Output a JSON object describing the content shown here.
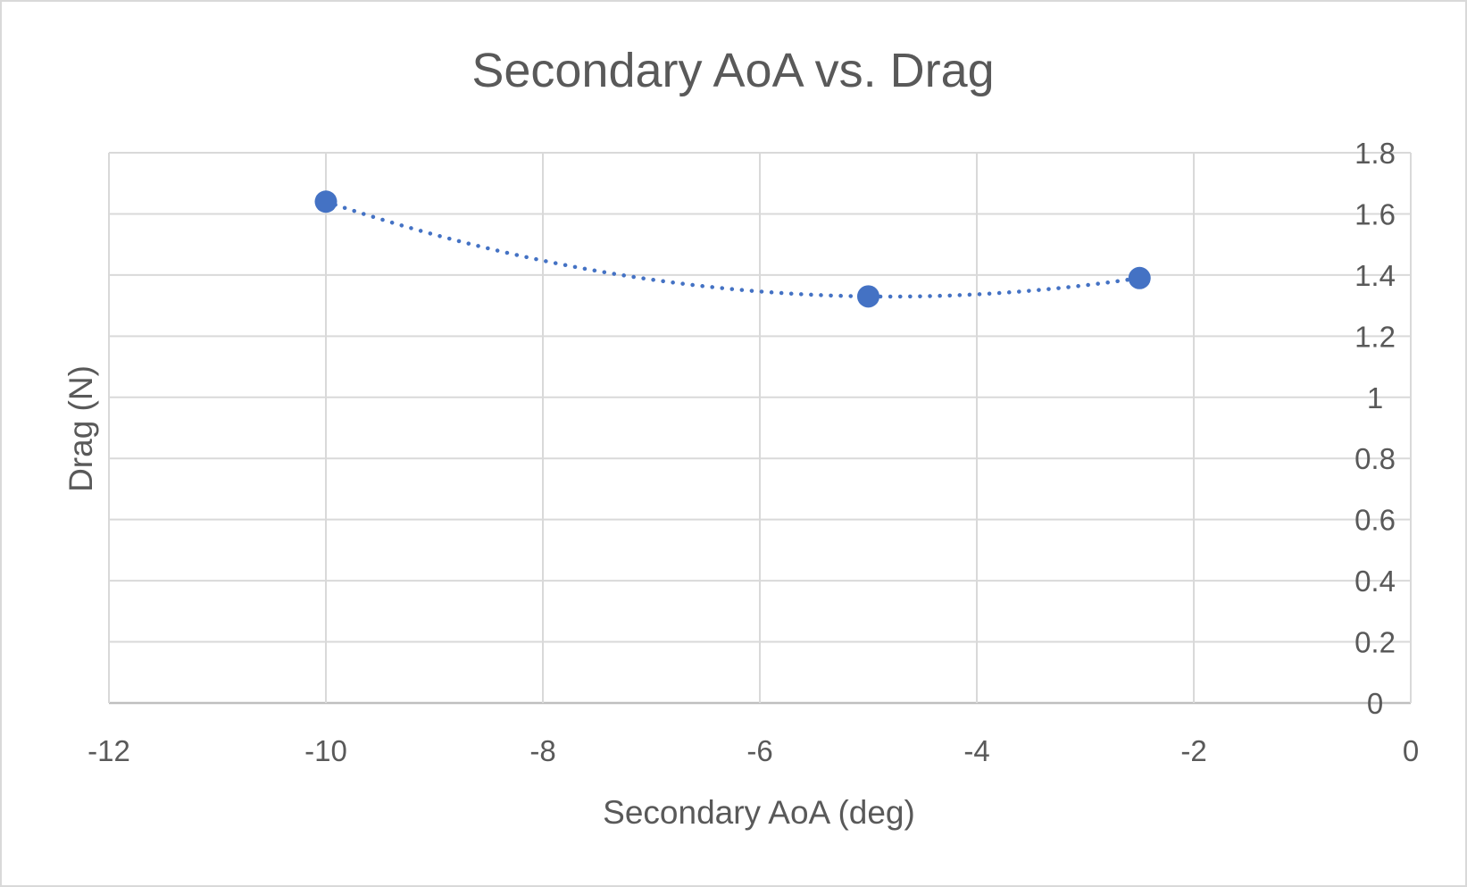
{
  "chart_data": {
    "type": "scatter",
    "title": "Secondary AoA vs. Drag",
    "xlabel": "Secondary AoA (deg)",
    "ylabel": "Drag (N)",
    "xlim": [
      -12,
      0
    ],
    "ylim": [
      0,
      1.8
    ],
    "x_ticks": [
      -12,
      -10,
      -8,
      -6,
      -4,
      -2,
      0
    ],
    "y_ticks": [
      0,
      0.2,
      0.4,
      0.6,
      0.8,
      1,
      1.2,
      1.4,
      1.6,
      1.8
    ],
    "y_axis_position": "right",
    "grid": true,
    "series": [
      {
        "name": "Drag",
        "x": [
          -10,
          -5,
          -2.5
        ],
        "y": [
          1.64,
          1.33,
          1.39
        ],
        "trendline": "polynomial (order 2), dotted",
        "color": "#4472c4"
      }
    ]
  }
}
